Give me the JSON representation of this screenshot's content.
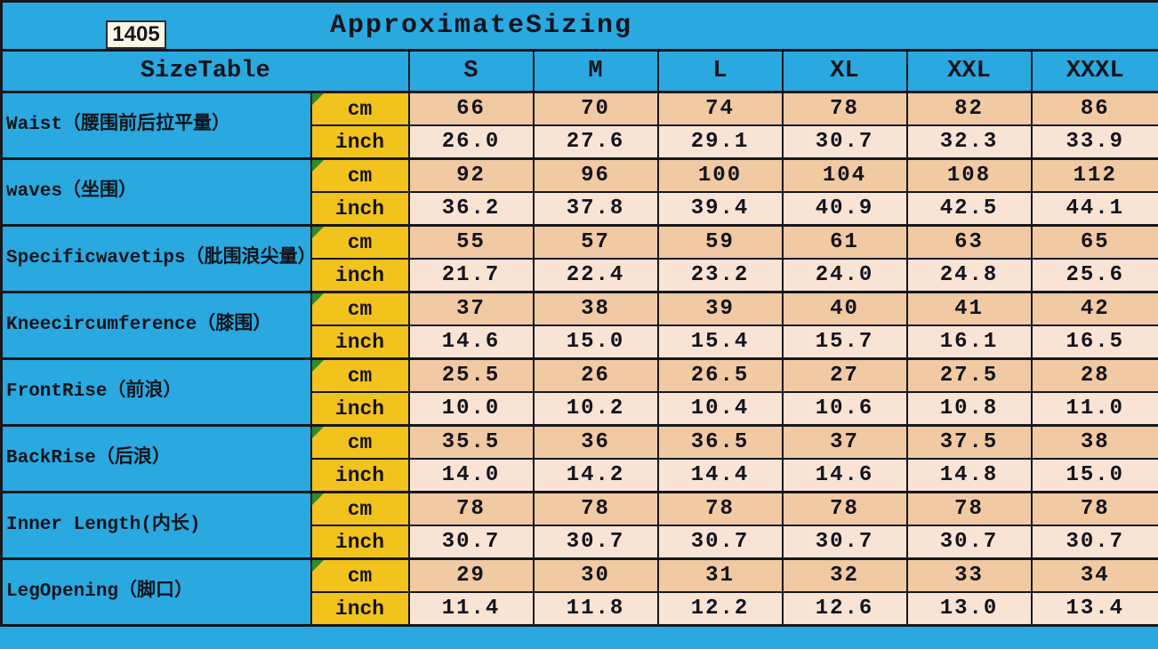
{
  "colors": {
    "background_cyan": "#29A9E0",
    "unit_cell_yellow": "#F2C21D",
    "cm_row_peach": "#F1C9A2",
    "inch_row_pale": "#F8E3D5",
    "border_dark": "#17171D",
    "flag_triangle_green": "#2E8B2E",
    "badge_cream": "#FAF6E4",
    "text_dark": "#14141C"
  },
  "chart_data": {
    "type": "table",
    "title": "ApproximateSizing",
    "badge": "1405",
    "corner_label": "SizeTable",
    "columns": [
      "S",
      "M",
      "L",
      "XL",
      "XXL",
      "XXXL"
    ],
    "unit_labels": [
      "cm",
      "inch"
    ],
    "measurements": [
      {
        "label": "Waist（腰围前后拉平量）",
        "cm": [
          "66",
          "70",
          "74",
          "78",
          "82",
          "86"
        ],
        "inch": [
          "26.0",
          "27.6",
          "29.1",
          "30.7",
          "32.3",
          "33.9"
        ]
      },
      {
        "label": "waves（坐围）",
        "cm": [
          "92",
          "96",
          "100",
          "104",
          "108",
          "112"
        ],
        "inch": [
          "36.2",
          "37.8",
          "39.4",
          "40.9",
          "42.5",
          "44.1"
        ]
      },
      {
        "label": "Specificwavetips（肶围浪尖量）",
        "cm": [
          "55",
          "57",
          "59",
          "61",
          "63",
          "65"
        ],
        "inch": [
          "21.7",
          "22.4",
          "23.2",
          "24.0",
          "24.8",
          "25.6"
        ]
      },
      {
        "label": "Kneecircumference（膝围）",
        "cm": [
          "37",
          "38",
          "39",
          "40",
          "41",
          "42"
        ],
        "inch": [
          "14.6",
          "15.0",
          "15.4",
          "15.7",
          "16.1",
          "16.5"
        ]
      },
      {
        "label": "FrontRise（前浪）",
        "cm": [
          "25.5",
          "26",
          "26.5",
          "27",
          "27.5",
          "28"
        ],
        "inch": [
          "10.0",
          "10.2",
          "10.4",
          "10.6",
          "10.8",
          "11.0"
        ]
      },
      {
        "label": "BackRise（后浪）",
        "cm": [
          "35.5",
          "36",
          "36.5",
          "37",
          "37.5",
          "38"
        ],
        "inch": [
          "14.0",
          "14.2",
          "14.4",
          "14.6",
          "14.8",
          "15.0"
        ]
      },
      {
        "label": "Inner Length(内长)",
        "cm": [
          "78",
          "78",
          "78",
          "78",
          "78",
          "78"
        ],
        "inch": [
          "30.7",
          "30.7",
          "30.7",
          "30.7",
          "30.7",
          "30.7"
        ]
      },
      {
        "label": "LegOpening（脚口）",
        "cm": [
          "29",
          "30",
          "31",
          "32",
          "33",
          "34"
        ],
        "inch": [
          "11.4",
          "11.8",
          "12.2",
          "12.6",
          "13.0",
          "13.4"
        ]
      }
    ]
  }
}
